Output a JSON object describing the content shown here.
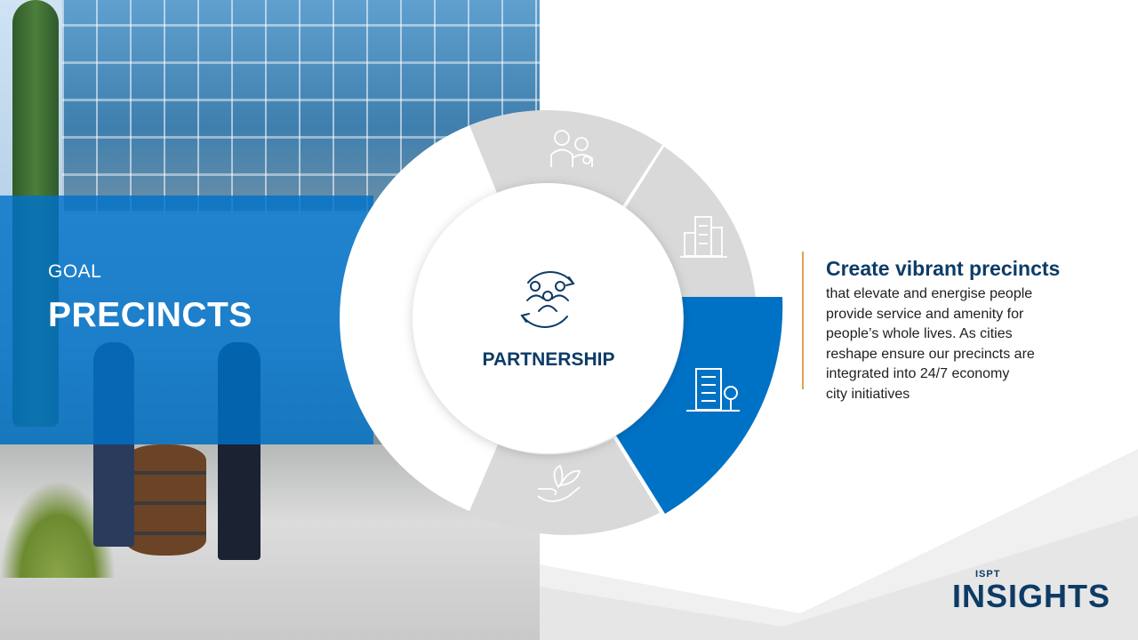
{
  "slide": {
    "goal_label": "GOAL",
    "goal_title": "PRECINCTS"
  },
  "ring": {
    "center_label": "PARTNERSHIP",
    "center_icon": "partnership-cycle-icon",
    "segments": [
      {
        "icon": "people-icon",
        "active": false
      },
      {
        "icon": "city-buildings-icon",
        "active": false
      },
      {
        "icon": "building-tree-icon",
        "active": true
      },
      {
        "icon": "hand-plant-icon",
        "active": false
      }
    ]
  },
  "content": {
    "headline": "Create vibrant precincts",
    "body_lines": [
      "that elevate and energise people",
      "provide service and amenity for",
      "people’s whole lives. As cities",
      "reshape ensure our precincts are",
      "integrated into 24/7 economy",
      "city initiatives"
    ]
  },
  "logo": {
    "small": "ISPT",
    "large": "INSIGHTS"
  },
  "colors": {
    "accent_blue": "#0072c6",
    "navy": "#0d3b66",
    "segment_grey": "#d9d9d9",
    "divider_orange": "#e3a257"
  }
}
